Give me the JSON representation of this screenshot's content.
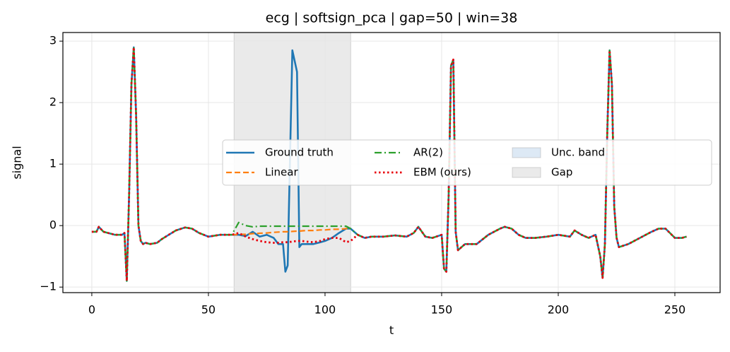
{
  "chart_data": {
    "type": "line",
    "title": "ecg | softsign_pca | gap=50 | win=38",
    "x_label": "t",
    "y_label": "signal",
    "x": [
      0,
      2,
      3,
      5,
      8,
      10,
      13,
      14,
      15,
      16,
      17,
      18,
      19,
      20,
      21,
      22,
      23,
      25,
      28,
      30,
      33,
      36,
      40,
      43,
      46,
      50,
      55,
      60,
      63,
      66,
      69,
      72,
      75,
      78,
      80,
      82,
      83,
      84,
      86,
      88,
      89,
      90,
      92,
      95,
      98,
      100,
      103,
      106,
      109,
      111,
      114,
      117,
      120,
      125,
      130,
      135,
      138,
      140,
      143,
      146,
      150,
      151,
      152,
      153,
      154,
      155,
      156,
      157,
      160,
      165,
      170,
      175,
      177,
      180,
      183,
      186,
      190,
      195,
      200,
      205,
      207,
      210,
      213,
      216,
      218,
      219,
      220,
      221,
      222,
      223,
      224,
      225,
      226,
      230,
      235,
      240,
      243,
      246,
      250,
      253,
      255
    ],
    "series": [
      {
        "name": "Ground truth",
        "color": "#1f77b4",
        "style": "solid",
        "width": 2.6,
        "values": [
          -0.1,
          -0.1,
          -0.02,
          -0.1,
          -0.13,
          -0.15,
          -0.15,
          -0.12,
          -0.9,
          0.5,
          2.3,
          2.9,
          1.8,
          0.0,
          -0.25,
          -0.3,
          -0.28,
          -0.3,
          -0.28,
          -0.22,
          -0.15,
          -0.08,
          -0.03,
          -0.05,
          -0.12,
          -0.18,
          -0.15,
          -0.15,
          -0.15,
          -0.17,
          -0.1,
          -0.18,
          -0.15,
          -0.2,
          -0.3,
          -0.3,
          -0.75,
          -0.65,
          2.85,
          2.5,
          -0.35,
          -0.3,
          -0.3,
          -0.3,
          -0.27,
          -0.25,
          -0.2,
          -0.12,
          -0.05,
          -0.05,
          -0.15,
          -0.2,
          -0.18,
          -0.18,
          -0.16,
          -0.18,
          -0.12,
          -0.02,
          -0.18,
          -0.2,
          -0.15,
          -0.7,
          -0.75,
          0.5,
          2.6,
          2.7,
          -0.1,
          -0.4,
          -0.3,
          -0.3,
          -0.15,
          -0.05,
          -0.02,
          -0.05,
          -0.15,
          -0.2,
          -0.2,
          -0.18,
          -0.15,
          -0.18,
          -0.08,
          -0.15,
          -0.2,
          -0.15,
          -0.5,
          -0.85,
          -0.3,
          1.5,
          2.85,
          2.3,
          0.3,
          -0.2,
          -0.35,
          -0.3,
          -0.2,
          -0.1,
          -0.05,
          -0.05,
          -0.2,
          -0.2,
          -0.18
        ]
      },
      {
        "name": "Linear",
        "color": "#ff7f0e",
        "style": "dashed",
        "width": 2.2,
        "values": [
          null,
          null,
          null,
          null,
          null,
          null,
          null,
          null,
          null,
          null,
          null,
          null,
          null,
          null,
          null,
          null,
          null,
          null,
          null,
          null,
          null,
          null,
          null,
          null,
          null,
          null,
          null,
          -0.15,
          -0.145,
          -0.14,
          -0.13,
          -0.125,
          -0.12,
          -0.11,
          -0.105,
          -0.1,
          -0.1,
          -0.1,
          -0.095,
          -0.09,
          -0.09,
          -0.085,
          -0.08,
          -0.08,
          -0.07,
          -0.07,
          -0.06,
          -0.06,
          -0.05,
          -0.05,
          null,
          null,
          null,
          null,
          null,
          null,
          null,
          null,
          null,
          null,
          null,
          null,
          null,
          null,
          null,
          null,
          null,
          null,
          null,
          null,
          null,
          null,
          null,
          null,
          null,
          null,
          null,
          null,
          null,
          null,
          null,
          null,
          null,
          null,
          null,
          null,
          null,
          null,
          null,
          null,
          null,
          null,
          null,
          null,
          null,
          null,
          null,
          null,
          null,
          null,
          null
        ]
      },
      {
        "name": "AR(2)",
        "color": "#2ca02c",
        "style": "dashdot",
        "width": 2.2,
        "values": [
          -0.1,
          -0.1,
          -0.02,
          -0.1,
          -0.13,
          -0.15,
          -0.15,
          -0.12,
          -0.9,
          0.5,
          2.3,
          2.9,
          1.8,
          0.0,
          -0.25,
          -0.3,
          -0.28,
          -0.3,
          -0.28,
          -0.22,
          -0.15,
          -0.08,
          -0.03,
          -0.05,
          -0.12,
          -0.18,
          -0.15,
          -0.15,
          0.05,
          0.0,
          -0.02,
          -0.01,
          -0.01,
          -0.01,
          -0.01,
          -0.01,
          -0.01,
          -0.01,
          -0.01,
          -0.01,
          -0.01,
          -0.01,
          -0.01,
          -0.01,
          -0.01,
          -0.01,
          -0.01,
          -0.01,
          -0.01,
          -0.05,
          -0.15,
          -0.2,
          -0.18,
          -0.18,
          -0.16,
          -0.18,
          -0.12,
          -0.02,
          -0.18,
          -0.2,
          -0.15,
          -0.7,
          -0.75,
          0.5,
          2.6,
          2.7,
          -0.1,
          -0.4,
          -0.3,
          -0.3,
          -0.15,
          -0.05,
          -0.02,
          -0.05,
          -0.15,
          -0.2,
          -0.2,
          -0.18,
          -0.15,
          -0.18,
          -0.08,
          -0.15,
          -0.2,
          -0.15,
          -0.5,
          -0.85,
          -0.3,
          1.5,
          2.85,
          2.3,
          0.3,
          -0.2,
          -0.35,
          -0.3,
          -0.2,
          -0.1,
          -0.05,
          -0.05,
          -0.2,
          -0.2,
          -0.18
        ]
      },
      {
        "name": "EBM (ours)",
        "color": "#e8000b",
        "style": "dotted",
        "width": 2.8,
        "values": [
          -0.1,
          -0.1,
          -0.02,
          -0.1,
          -0.13,
          -0.15,
          -0.15,
          -0.12,
          -0.9,
          0.5,
          2.3,
          2.9,
          1.8,
          0.0,
          -0.25,
          -0.3,
          -0.28,
          -0.3,
          -0.28,
          -0.22,
          -0.15,
          -0.08,
          -0.03,
          -0.05,
          -0.12,
          -0.18,
          -0.15,
          -0.15,
          -0.12,
          -0.18,
          -0.22,
          -0.25,
          -0.27,
          -0.28,
          -0.28,
          -0.27,
          -0.27,
          -0.27,
          -0.26,
          -0.25,
          -0.25,
          -0.25,
          -0.26,
          -0.27,
          -0.25,
          -0.22,
          -0.2,
          -0.2,
          -0.27,
          -0.25,
          -0.15,
          -0.2,
          -0.18,
          -0.18,
          -0.16,
          -0.18,
          -0.12,
          -0.02,
          -0.18,
          -0.2,
          -0.15,
          -0.7,
          -0.75,
          0.5,
          2.6,
          2.7,
          -0.1,
          -0.4,
          -0.3,
          -0.3,
          -0.15,
          -0.05,
          -0.02,
          -0.05,
          -0.15,
          -0.2,
          -0.2,
          -0.18,
          -0.15,
          -0.18,
          -0.08,
          -0.15,
          -0.2,
          -0.15,
          -0.5,
          -0.85,
          -0.3,
          1.5,
          2.85,
          2.3,
          0.3,
          -0.2,
          -0.35,
          -0.3,
          -0.2,
          -0.1,
          -0.05,
          -0.05,
          -0.2,
          -0.2,
          -0.18
        ]
      }
    ],
    "band": {
      "name": "Unc. band",
      "color": "#c6dbef"
    },
    "gap": {
      "name": "Gap",
      "xrange": [
        61,
        111
      ],
      "color": "#d9d9d9"
    },
    "xlim": [
      -12.4,
      269.4
    ],
    "xticks": [
      0,
      50,
      100,
      150,
      200,
      250
    ],
    "ylim": [
      -1.09,
      3.14
    ],
    "yticks": [
      {
        "value": -1,
        "label": "−1"
      },
      0,
      1,
      2,
      3
    ],
    "grid": true,
    "legend": "center"
  }
}
